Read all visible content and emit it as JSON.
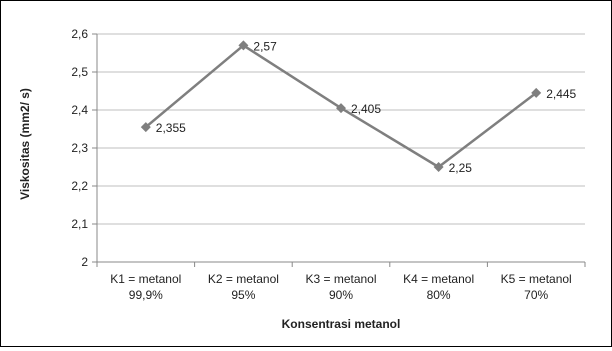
{
  "chart_data": {
    "type": "line",
    "categories": [
      [
        "K1 = metanol",
        "99,9%"
      ],
      [
        "K2 = metanol",
        "95%"
      ],
      [
        "K3 =  metanol",
        "90%"
      ],
      [
        "K4 =  metanol",
        "80%"
      ],
      [
        "K5 =  metanol",
        "70%"
      ]
    ],
    "values": [
      2.355,
      2.57,
      2.405,
      2.25,
      2.445
    ],
    "data_labels": [
      "2,355",
      "2,57",
      "2,405",
      "2,25",
      "2,445"
    ],
    "xlabel": "Konsentrasi metanol",
    "ylabel": "Viskositas (mm2/ s)",
    "ylim": [
      2,
      2.6
    ],
    "yticks": [
      2,
      2.1,
      2.2,
      2.3,
      2.4,
      2.5,
      2.6
    ],
    "ytick_labels": [
      "2",
      "2,1",
      "2,2",
      "2,3",
      "2,4",
      "2,5",
      "2,6"
    ],
    "grid": true,
    "legend": "none",
    "line_color": "#7f7f7f",
    "grid_color": "#bfbfbf"
  }
}
